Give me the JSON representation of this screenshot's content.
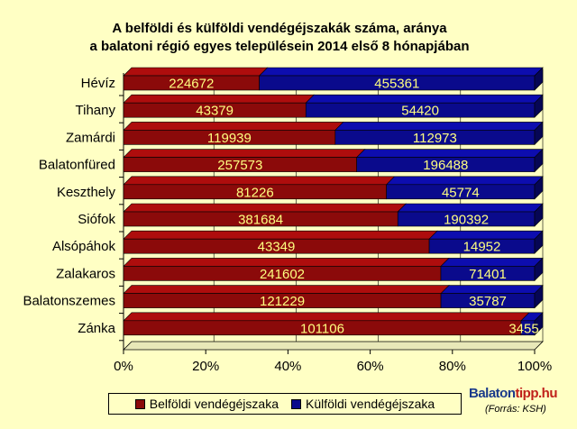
{
  "chart_data": {
    "type": "bar",
    "orientation": "horizontal",
    "stacked": "percent",
    "title_lines": [
      "A belföldi és külföldi vendégéjszakák száma, aránya",
      "a balatoni régió egyes településein 2014 első 8 hónapjában"
    ],
    "categories": [
      "Hévíz",
      "Tihany",
      "Zamárdi",
      "Balatonfüred",
      "Keszthely",
      "Siófok",
      "Alsópáhok",
      "Zalakaros",
      "Balatonszemes",
      "Zánka"
    ],
    "series": [
      {
        "name": "Belföldi vendégéjszaka",
        "color": "#8b0a0a",
        "values": [
          224672,
          43379,
          119939,
          257573,
          81226,
          381684,
          43349,
          241602,
          121229,
          101106
        ]
      },
      {
        "name": "Külföldi vendégéjszaka",
        "color": "#0a0a8c",
        "values": [
          455361,
          54420,
          112973,
          196488,
          45774,
          190392,
          14952,
          71401,
          35787,
          3455
        ]
      }
    ],
    "x_ticks": [
      "0%",
      "20%",
      "40%",
      "60%",
      "80%",
      "100%"
    ],
    "xlim": [
      0,
      100
    ],
    "legend_position": "bottom",
    "label_color": "#ffff80"
  },
  "branding": {
    "part1": "Balaton",
    "part2": "tipp.hu",
    "source": "(Forrás: KSH)"
  }
}
